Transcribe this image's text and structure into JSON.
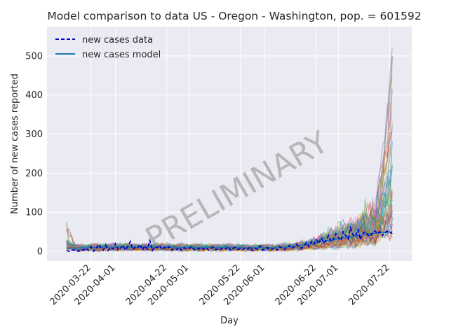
{
  "chart_data": {
    "type": "line",
    "title": "Model comparison to data US - Oregon - Washington, pop. = 601592",
    "xlabel": "Day",
    "ylabel": "Number of new cases reported",
    "x_start": "2020-03-12",
    "x_end": "2020-07-24",
    "xlim": [
      "2020-03-04",
      "2020-07-31"
    ],
    "ylim": [
      -25,
      575
    ],
    "y_ticks": [
      0,
      100,
      200,
      300,
      400,
      500
    ],
    "x_ticks": [
      "2020-03-22",
      "2020-04-01",
      "2020-04-22",
      "2020-05-01",
      "2020-05-22",
      "2020-06-01",
      "2020-06-22",
      "2020-07-01",
      "2020-07-22"
    ],
    "grid": true,
    "legend_position": "top-left",
    "watermark": "PRELIMINARY",
    "series": [
      {
        "name": "new cases data",
        "style": "dashed",
        "color": "#0000cc",
        "values": [
          2,
          0,
          3,
          4,
          1,
          0,
          5,
          3,
          8,
          2,
          12,
          0,
          5,
          18,
          9,
          3,
          15,
          2,
          10,
          6,
          20,
          4,
          8,
          15,
          3,
          12,
          25,
          5,
          10,
          8,
          18,
          3,
          14,
          6,
          28,
          2,
          12,
          9,
          15,
          4,
          10,
          7,
          12,
          3,
          8,
          5,
          10,
          2,
          9,
          6,
          7,
          12,
          4,
          8,
          6,
          10,
          5,
          9,
          3,
          8,
          11,
          4,
          7,
          5,
          9,
          6,
          12,
          3,
          8,
          10,
          5,
          7,
          4,
          9,
          6,
          11,
          2,
          8,
          5,
          14,
          3,
          7,
          10,
          4,
          6,
          9,
          3,
          12,
          8,
          5,
          10,
          15,
          7,
          12,
          18,
          10,
          8,
          14,
          22,
          12,
          25,
          18,
          30,
          20,
          35,
          22,
          28,
          40,
          25,
          30,
          45,
          35,
          28,
          50,
          40,
          32,
          60,
          42,
          38,
          55,
          30,
          45,
          50,
          42,
          38,
          48,
          52,
          45,
          50,
          40,
          48,
          52,
          50,
          45
        ]
      },
      {
        "name": "new cases model",
        "style": "solid",
        "color": "#1f77b4",
        "values": [
          8,
          8,
          8,
          8,
          8,
          9,
          9,
          9,
          9,
          10,
          10,
          10,
          10,
          10,
          11,
          11,
          11,
          11,
          11,
          11,
          11,
          11,
          11,
          11,
          11,
          11,
          11,
          11,
          11,
          11,
          11,
          11,
          11,
          11,
          11,
          11,
          11,
          11,
          11,
          11,
          11,
          11,
          11,
          10,
          10,
          10,
          10,
          10,
          10,
          10,
          10,
          10,
          10,
          10,
          10,
          10,
          10,
          10,
          10,
          10,
          10,
          10,
          10,
          10,
          10,
          10,
          10,
          10,
          9,
          9,
          9,
          9,
          9,
          9,
          9,
          9,
          9,
          9,
          9,
          9,
          9,
          9,
          9,
          9,
          9,
          9,
          10,
          10,
          10,
          11,
          11,
          12,
          12,
          13,
          14,
          15,
          16,
          17,
          18,
          19,
          20,
          21,
          22,
          24,
          25,
          26,
          27,
          28,
          29,
          30,
          31,
          32,
          33,
          34,
          35,
          36,
          37,
          38,
          39,
          40,
          41,
          42,
          43,
          44,
          45,
          46,
          46,
          47,
          47,
          48,
          48,
          49,
          49,
          50
        ]
      }
    ]
  }
}
